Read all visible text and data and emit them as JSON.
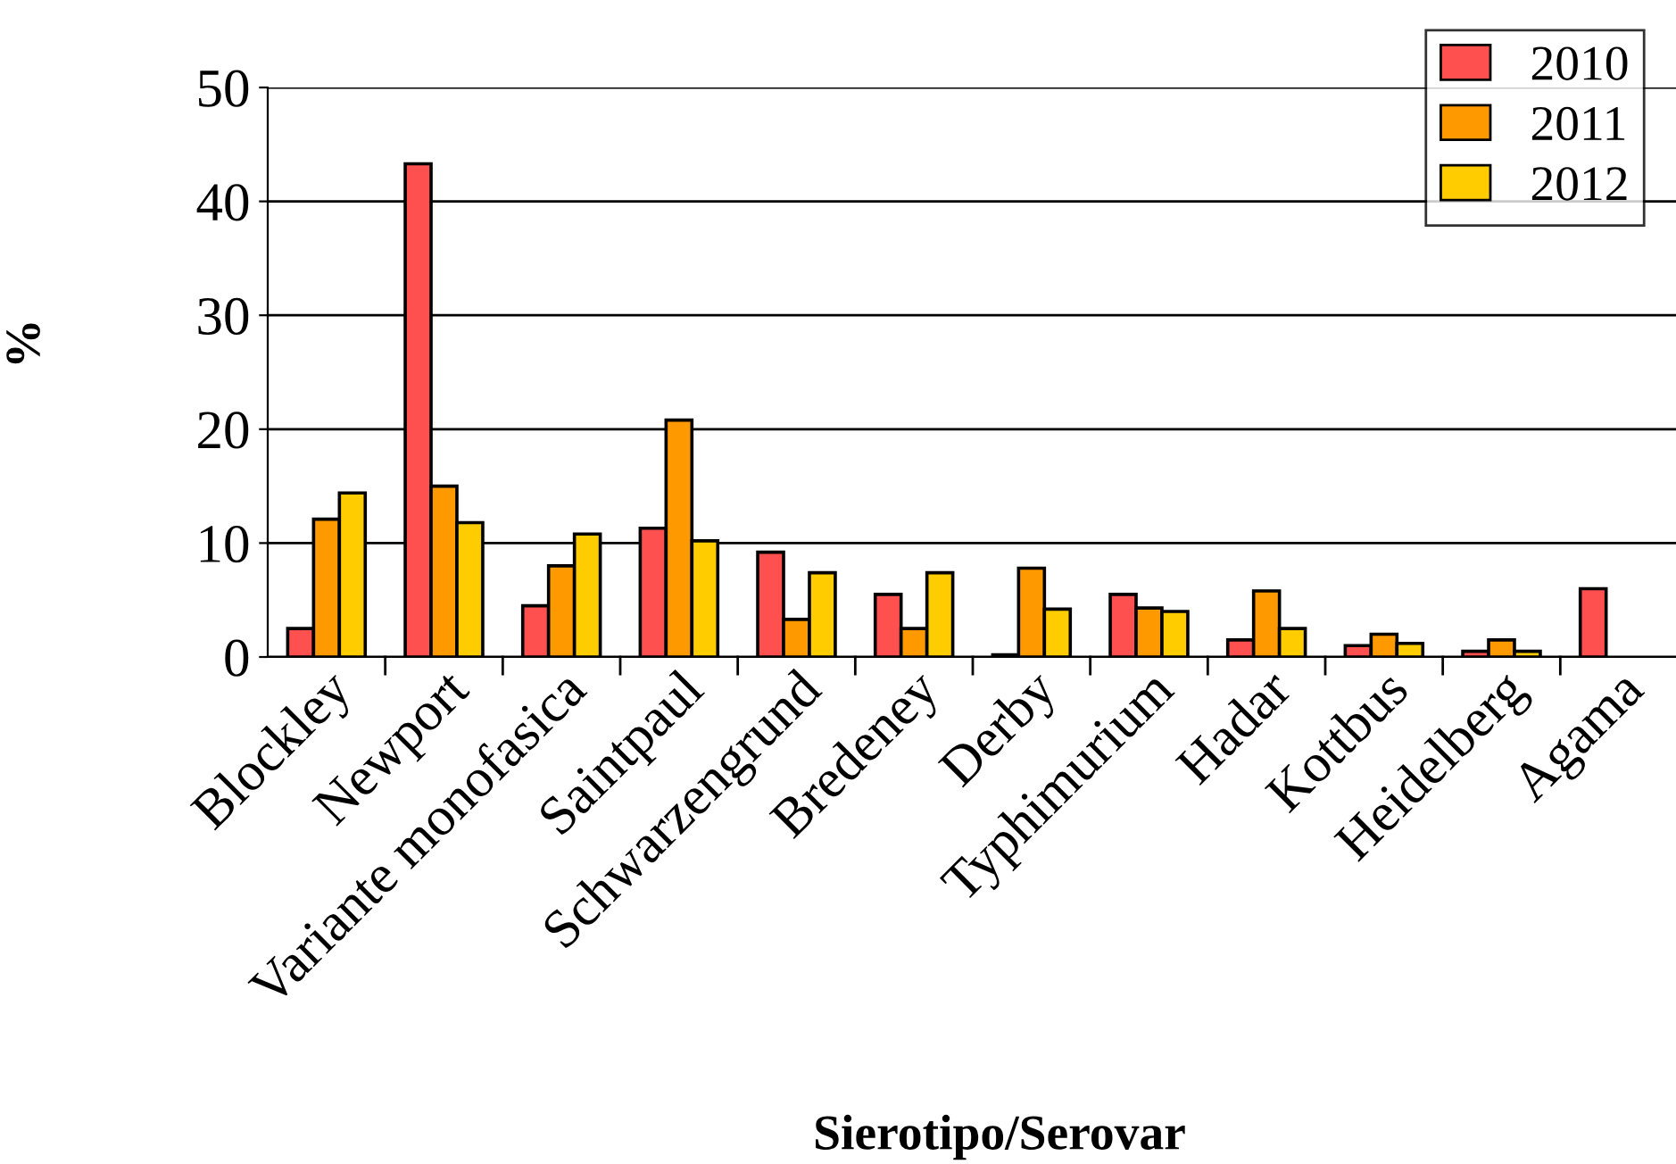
{
  "chart_data": {
    "type": "bar",
    "xlabel": "Sierotipo/Serovar",
    "ylabel": "%",
    "categories": [
      "Blockley",
      "Newport",
      "Variante monofasica",
      "Saintpaul",
      "Schwarzengrund",
      "Bredeney",
      "Derby",
      "Typhimurium",
      "Hadar",
      "Kottbus",
      "Heidelberg",
      "Agama"
    ],
    "series": [
      {
        "name": "2010",
        "color": "#ff5050",
        "values": [
          2.5,
          43.3,
          4.5,
          11.3,
          9.2,
          5.5,
          0.2,
          5.5,
          1.5,
          1.0,
          0.5,
          6.0
        ]
      },
      {
        "name": "2011",
        "color": "#ff9900",
        "values": [
          12.1,
          15.0,
          8.0,
          20.8,
          3.3,
          2.5,
          7.8,
          4.3,
          5.8,
          2.0,
          1.5,
          null
        ]
      },
      {
        "name": "2012",
        "color": "#ffcc00",
        "values": [
          14.4,
          11.8,
          10.8,
          10.2,
          7.4,
          7.4,
          4.2,
          4.0,
          2.5,
          1.2,
          0.5,
          null
        ]
      }
    ],
    "ylim": [
      0,
      50
    ],
    "yticks": [
      0,
      10,
      20,
      30,
      40,
      50
    ],
    "grid": "y",
    "legend": "top right"
  }
}
